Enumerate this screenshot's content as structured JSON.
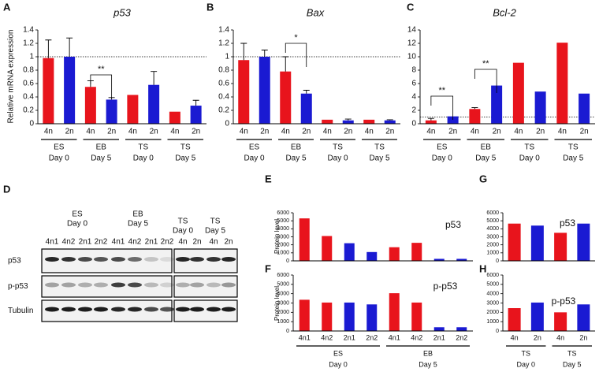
{
  "chart_data": [
    {
      "type": "bar",
      "label": "A",
      "title": "p53",
      "y_label": "Relative mRNA expression",
      "categories": [
        "4n",
        "2n",
        "4n",
        "2n",
        "4n",
        "2n",
        "4n",
        "2n"
      ],
      "values": [
        0.98,
        1.0,
        0.55,
        0.36,
        0.43,
        0.58,
        0.18,
        0.27
      ],
      "errors": [
        0.27,
        0.28,
        0.09,
        0.03,
        null,
        0.2,
        null,
        0.08
      ],
      "colors": [
        "#e8141c",
        "#1a1ad2",
        "#e8141c",
        "#1a1ad2",
        "#e8141c",
        "#1a1ad2",
        "#e8141c",
        "#1a1ad2"
      ],
      "groups": [
        {
          "name": "ES",
          "sub": "Day 0"
        },
        {
          "name": "EB",
          "sub": "Day 5"
        },
        {
          "name": "TS",
          "sub": "Day 0"
        },
        {
          "name": "TS",
          "sub": "Day 5"
        }
      ],
      "reference_line": 1,
      "annotations": [
        "**"
      ],
      "ylim": [
        0,
        1.4
      ],
      "yticks": [
        0,
        0.2,
        0.4,
        0.6,
        0.8,
        1,
        1.2,
        1.4
      ]
    },
    {
      "type": "bar",
      "label": "B",
      "title": "Bax",
      "categories": [
        "4n",
        "2n",
        "4n",
        "2n",
        "4n",
        "2n",
        "4n",
        "2n"
      ],
      "values": [
        0.95,
        1.0,
        0.78,
        0.45,
        0.06,
        0.05,
        0.06,
        0.05
      ],
      "errors": [
        0.25,
        0.1,
        0.22,
        0.05,
        null,
        0.02,
        null,
        0.01
      ],
      "colors": [
        "#e8141c",
        "#1a1ad2",
        "#e8141c",
        "#1a1ad2",
        "#e8141c",
        "#1a1ad2",
        "#e8141c",
        "#1a1ad2"
      ],
      "groups": [
        {
          "name": "ES",
          "sub": "Day 0"
        },
        {
          "name": "EB",
          "sub": "Day 5"
        },
        {
          "name": "TS",
          "sub": "Day 0"
        },
        {
          "name": "TS",
          "sub": "Day 5"
        }
      ],
      "reference_line": 1,
      "annotations": [
        "*"
      ],
      "ylim": [
        0,
        1.4
      ],
      "yticks": [
        0,
        0.2,
        0.4,
        0.6,
        0.8,
        1,
        1.2,
        1.4
      ]
    },
    {
      "type": "bar",
      "label": "C",
      "title": "Bcl-2",
      "categories": [
        "4n",
        "2n",
        "4n",
        "2n",
        "4n",
        "2n",
        "4n",
        "2n"
      ],
      "values": [
        0.5,
        1.1,
        2.2,
        5.7,
        9.1,
        4.8,
        12.1,
        4.5
      ],
      "errors": [
        0.3,
        null,
        0.2,
        null,
        null,
        null,
        null,
        null
      ],
      "colors": [
        "#e8141c",
        "#1a1ad2",
        "#e8141c",
        "#1a1ad2",
        "#e8141c",
        "#1a1ad2",
        "#e8141c",
        "#1a1ad2"
      ],
      "groups": [
        {
          "name": "ES",
          "sub": "Day 0"
        },
        {
          "name": "EB",
          "sub": "Day 5"
        },
        {
          "name": "TS",
          "sub": "Day 0"
        },
        {
          "name": "TS",
          "sub": "Day 5"
        }
      ],
      "reference_line": 1,
      "annotations": [
        "**",
        "**"
      ],
      "ylim": [
        0,
        14
      ],
      "yticks": [
        0,
        2,
        4,
        6,
        8,
        10,
        12,
        14
      ]
    },
    {
      "type": "bar",
      "label": "E",
      "title": "p53",
      "y_label": "Protein level",
      "values": [
        5300,
        3100,
        2200,
        1100,
        1700,
        2250,
        250,
        250
      ],
      "colors": [
        "#e8141c",
        "#e8141c",
        "#1a1ad2",
        "#1a1ad2",
        "#e8141c",
        "#e8141c",
        "#1a1ad2",
        "#1a1ad2"
      ],
      "ylim": [
        0,
        6000
      ],
      "yticks": [
        0,
        1000,
        2000,
        3000,
        4000,
        5000,
        6000
      ]
    },
    {
      "type": "bar",
      "label": "F",
      "title": "p-p53",
      "y_label": "Protein level",
      "categories": [
        "4n1",
        "4n2",
        "2n1",
        "2n2",
        "4n1",
        "4n2",
        "2n1",
        "2n2"
      ],
      "values": [
        3350,
        3050,
        3050,
        2850,
        4050,
        3050,
        400,
        400
      ],
      "colors": [
        "#e8141c",
        "#e8141c",
        "#1a1ad2",
        "#1a1ad2",
        "#e8141c",
        "#e8141c",
        "#1a1ad2",
        "#1a1ad2"
      ],
      "groups": [
        {
          "name": "ES",
          "sub": "Day 0"
        },
        {
          "name": "EB",
          "sub": "Day 5"
        }
      ],
      "ylim": [
        0,
        6000
      ],
      "yticks": [
        0,
        1000,
        2000,
        3000,
        4000,
        5000,
        6000
      ]
    },
    {
      "type": "bar",
      "label": "G",
      "title": "p53",
      "values": [
        4650,
        4400,
        3500,
        4650
      ],
      "colors": [
        "#e8141c",
        "#1a1ad2",
        "#e8141c",
        "#1a1ad2"
      ],
      "ylim": [
        0,
        6000
      ],
      "yticks": [
        0,
        1000,
        2000,
        3000,
        4000,
        5000,
        6000
      ]
    },
    {
      "type": "bar",
      "label": "H",
      "title": "p-p53",
      "categories": [
        "4n",
        "2n",
        "4n",
        "2n"
      ],
      "values": [
        2450,
        3050,
        2000,
        2850
      ],
      "colors": [
        "#e8141c",
        "#1a1ad2",
        "#e8141c",
        "#1a1ad2"
      ],
      "groups": [
        {
          "name": "TS",
          "sub": "Day 0"
        },
        {
          "name": "TS",
          "sub": "Day 5"
        }
      ],
      "ylim": [
        0,
        6000
      ],
      "yticks": [
        0,
        1000,
        2000,
        3000,
        4000,
        5000,
        6000
      ]
    }
  ],
  "blot": {
    "label": "D",
    "groups": [
      {
        "name": "ES",
        "sub": "Day 0"
      },
      {
        "name": "EB",
        "sub": "Day 5"
      },
      {
        "name": "TS",
        "sub": "Day 0"
      },
      {
        "name": "TS",
        "sub": "Day 5"
      }
    ],
    "lanes": [
      "4n1",
      "4n2",
      "2n1",
      "2n2",
      "4n1",
      "4n2",
      "2n1",
      "2n2",
      "4n",
      "2n",
      "4n",
      "2n"
    ],
    "rows": [
      "p53",
      "p-p53",
      "Tubulin"
    ]
  }
}
